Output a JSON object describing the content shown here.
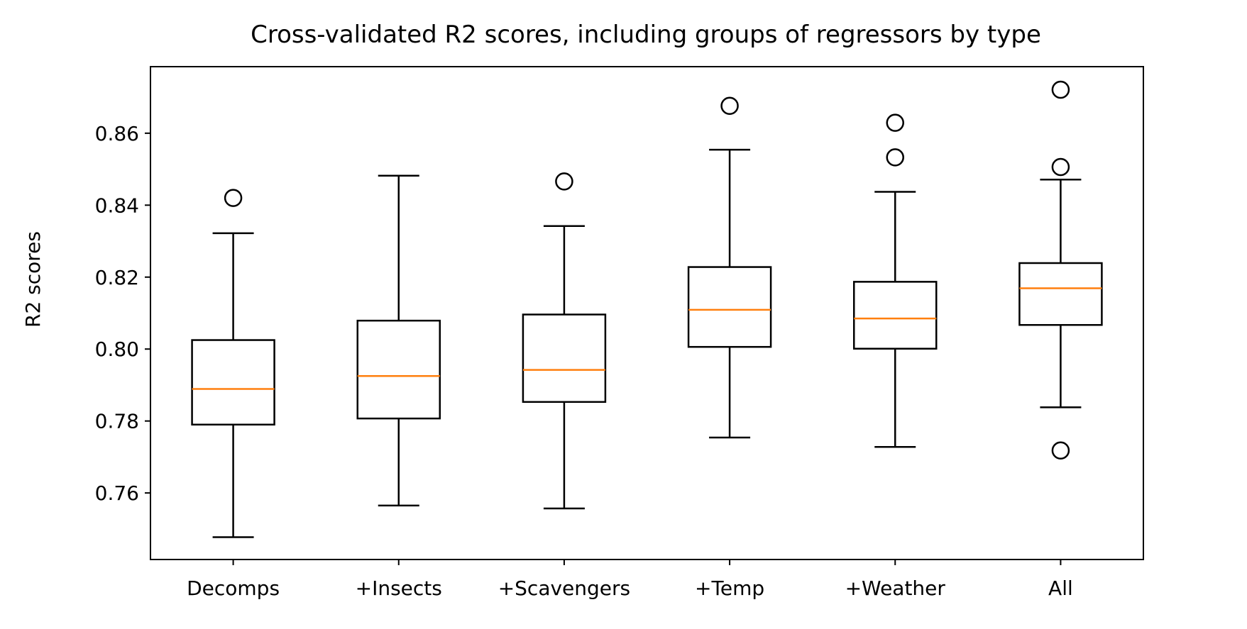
{
  "chart_data": {
    "type": "boxplot",
    "title": "Cross-validated R2 scores, including groups of regressors by type",
    "xlabel": "",
    "ylabel": "R2 scores",
    "ylim": [
      0.7415,
      0.8785
    ],
    "yticks": [
      "0.76",
      "0.78",
      "0.80",
      "0.82",
      "0.84",
      "0.86"
    ],
    "grid": false,
    "legend": "none",
    "colors": {
      "box": "#000000",
      "median": "#ff7f0e",
      "flier": "#000000",
      "background": "#ffffff"
    },
    "categories": [
      "Decomps",
      "+Insects",
      "+Scavengers",
      "+Temp",
      "+Weather",
      "All"
    ],
    "boxes": [
      {
        "name": "Decomps",
        "whisker_low": 0.7477,
        "q1": 0.779,
        "median": 0.7889,
        "q3": 0.8025,
        "whisker_high": 0.8322,
        "fliers": [
          0.842
        ]
      },
      {
        "name": "+Insects",
        "whisker_low": 0.7565,
        "q1": 0.7807,
        "median": 0.7925,
        "q3": 0.8079,
        "whisker_high": 0.8482,
        "fliers": []
      },
      {
        "name": "+Scavengers",
        "whisker_low": 0.7557,
        "q1": 0.7853,
        "median": 0.7942,
        "q3": 0.8096,
        "whisker_high": 0.8342,
        "fliers": [
          0.8466
        ]
      },
      {
        "name": "+Temp",
        "whisker_low": 0.7754,
        "q1": 0.8006,
        "median": 0.8109,
        "q3": 0.8228,
        "whisker_high": 0.8554,
        "fliers": [
          0.8676
        ]
      },
      {
        "name": "+Weather",
        "whisker_low": 0.7728,
        "q1": 0.8001,
        "median": 0.8085,
        "q3": 0.8187,
        "whisker_high": 0.8437,
        "fliers": [
          0.8533,
          0.8629
        ]
      },
      {
        "name": "All",
        "whisker_low": 0.7838,
        "q1": 0.8067,
        "median": 0.8169,
        "q3": 0.8239,
        "whisker_high": 0.8471,
        "fliers": [
          0.7718,
          0.8506,
          0.8721
        ]
      }
    ]
  }
}
